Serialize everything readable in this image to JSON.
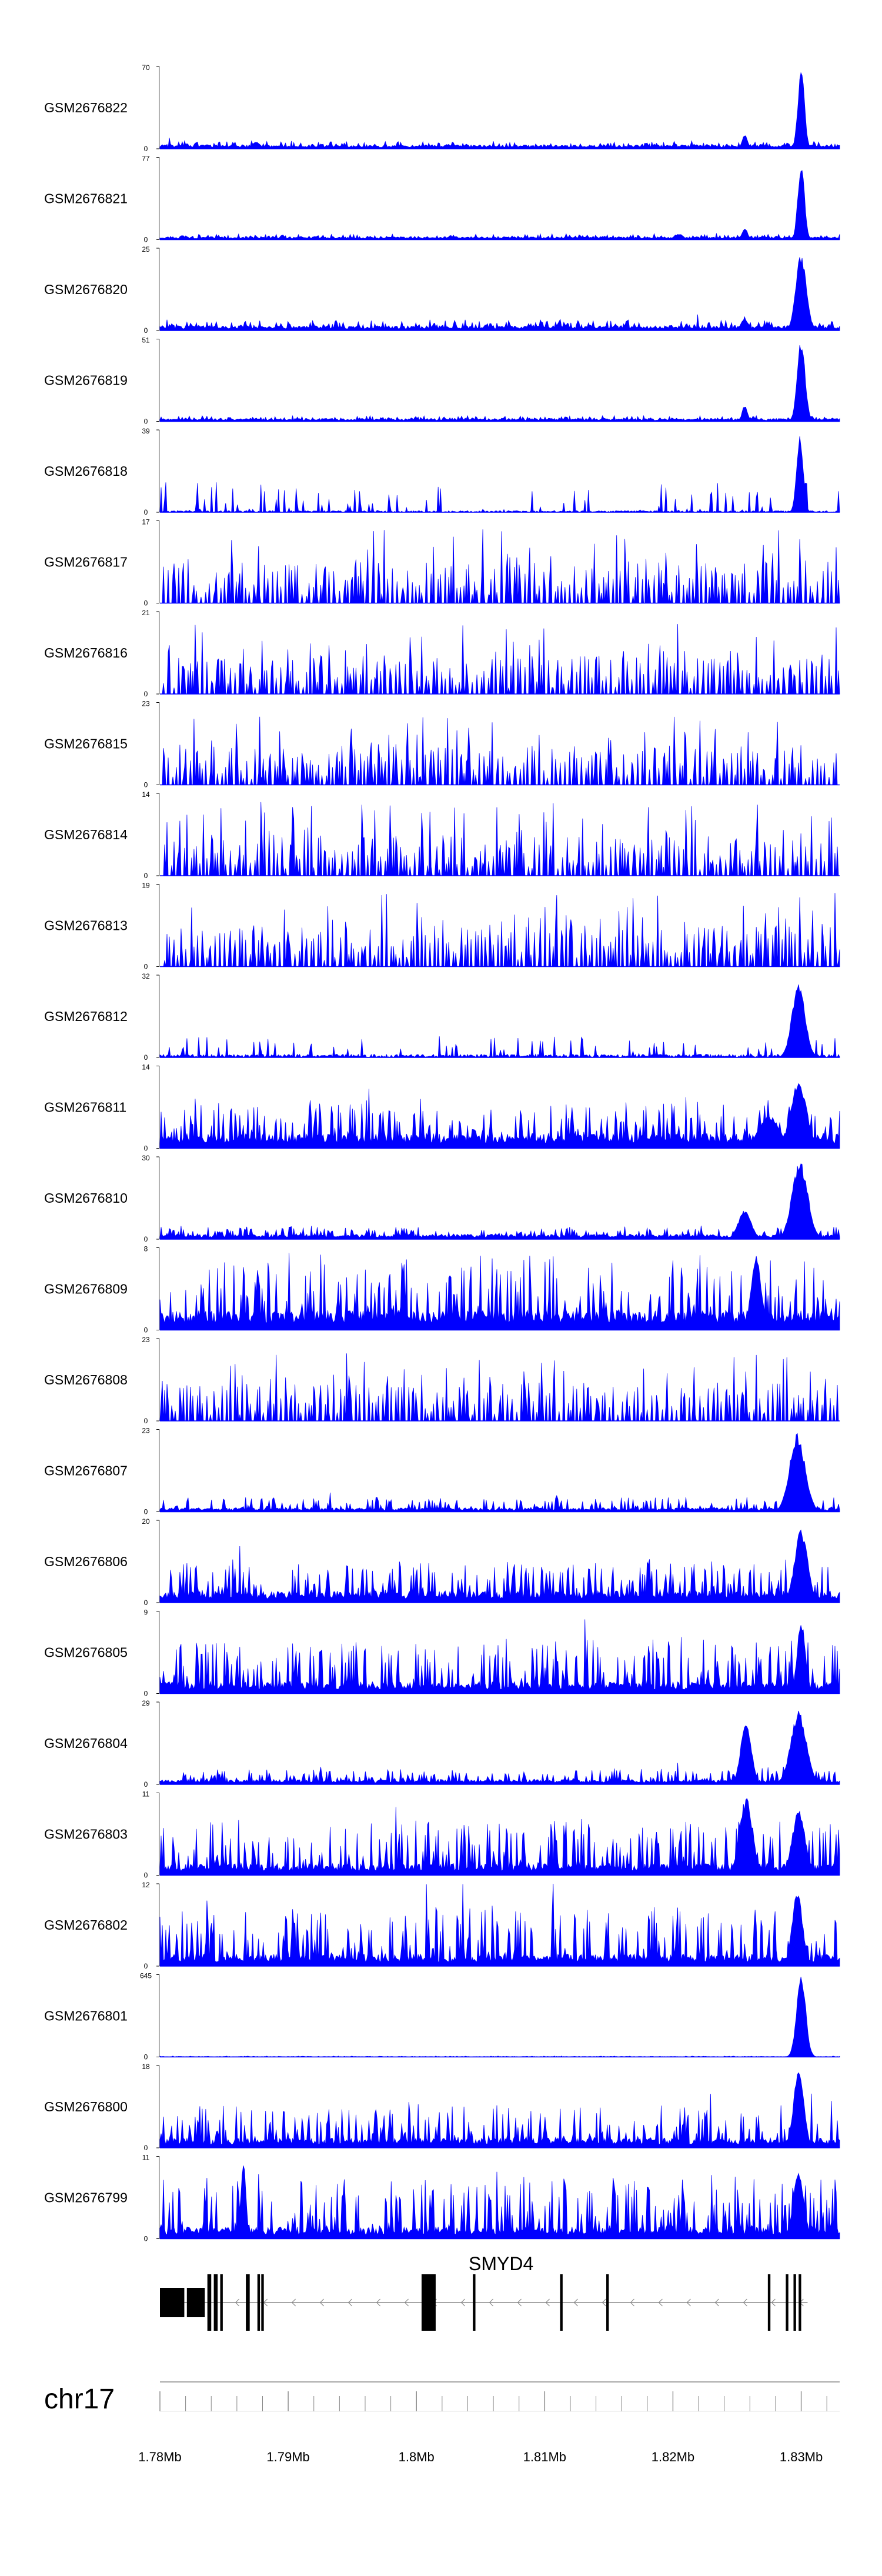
{
  "chart_data": {
    "type": "area",
    "chromosome": "chr17",
    "xlim": [
      1.78,
      1.833
    ],
    "x_unit": "Mb",
    "x_ticks": [
      1.78,
      1.79,
      1.8,
      1.81,
      1.82,
      1.83
    ],
    "x_tick_labels": [
      "1.78Mb",
      "1.79Mb",
      "1.8Mb",
      "1.81Mb",
      "1.82Mb",
      "1.83Mb"
    ],
    "color": "#0000ff",
    "tracks": [
      {
        "name": "GSM2676822",
        "max": 70,
        "min": 0,
        "baseline": 0.04,
        "noise": 0.05,
        "style": "dense",
        "peaks": [
          {
            "x": 1.83,
            "h": 1.0,
            "w": 0.00025
          },
          {
            "x": 1.8256,
            "h": 0.18,
            "w": 0.0002
          },
          {
            "x": 1.7875,
            "h": 0.09,
            "w": 0.0003
          }
        ]
      },
      {
        "name": "GSM2676821",
        "max": 77,
        "min": 0,
        "baseline": 0.03,
        "noise": 0.04,
        "style": "dense",
        "peaks": [
          {
            "x": 1.83,
            "h": 0.95,
            "w": 0.00025
          },
          {
            "x": 1.8256,
            "h": 0.15,
            "w": 0.0002
          },
          {
            "x": 1.8205,
            "h": 0.07,
            "w": 0.0003
          }
        ]
      },
      {
        "name": "GSM2676820",
        "max": 25,
        "min": 0,
        "baseline": 0.05,
        "noise": 0.08,
        "style": "dense",
        "peaks": [
          {
            "x": 1.83,
            "h": 0.95,
            "w": 0.0004
          },
          {
            "x": 1.8256,
            "h": 0.14,
            "w": 0.0003
          }
        ]
      },
      {
        "name": "GSM2676819",
        "max": 51,
        "min": 0,
        "baseline": 0.03,
        "noise": 0.04,
        "style": "dense",
        "peaks": [
          {
            "x": 1.83,
            "h": 1.0,
            "w": 0.0003
          },
          {
            "x": 1.8256,
            "h": 0.2,
            "w": 0.0002
          }
        ]
      },
      {
        "name": "GSM2676818",
        "max": 39,
        "min": 0,
        "baseline": 0.02,
        "noise": 0.28,
        "style": "spiky",
        "peaks": [
          {
            "x": 1.8299,
            "h": 0.95,
            "w": 0.00025
          }
        ]
      },
      {
        "name": "GSM2676817",
        "max": 17,
        "min": 0,
        "baseline": 0.0,
        "noise": 0.9,
        "style": "sparse",
        "peaks": []
      },
      {
        "name": "GSM2676816",
        "max": 21,
        "min": 0,
        "baseline": 0.0,
        "noise": 0.85,
        "style": "sparse",
        "peaks": []
      },
      {
        "name": "GSM2676815",
        "max": 23,
        "min": 0,
        "baseline": 0.0,
        "noise": 0.85,
        "style": "sparse",
        "peaks": []
      },
      {
        "name": "GSM2676814",
        "max": 14,
        "min": 0,
        "baseline": 0.0,
        "noise": 0.9,
        "style": "sparse",
        "peaks": []
      },
      {
        "name": "GSM2676813",
        "max": 19,
        "min": 0,
        "baseline": 0.0,
        "noise": 0.9,
        "style": "sparse",
        "peaks": []
      },
      {
        "name": "GSM2676812",
        "max": 32,
        "min": 0,
        "baseline": 0.04,
        "noise": 0.2,
        "style": "spiky",
        "peaks": [
          {
            "x": 1.8298,
            "h": 0.92,
            "w": 0.0005
          }
        ]
      },
      {
        "name": "GSM2676811",
        "max": 14,
        "min": 0,
        "baseline": 0.15,
        "noise": 0.45,
        "style": "dense",
        "peaks": [
          {
            "x": 1.8298,
            "h": 0.85,
            "w": 0.0006
          },
          {
            "x": 1.8275,
            "h": 0.4,
            "w": 0.0008
          }
        ]
      },
      {
        "name": "GSM2676810",
        "max": 30,
        "min": 0,
        "baseline": 0.05,
        "noise": 0.12,
        "style": "dense",
        "peaks": [
          {
            "x": 1.8299,
            "h": 0.95,
            "w": 0.0006
          },
          {
            "x": 1.8256,
            "h": 0.35,
            "w": 0.0005
          }
        ]
      },
      {
        "name": "GSM2676809",
        "max": 8,
        "min": 0,
        "baseline": 0.2,
        "noise": 0.7,
        "style": "dense",
        "peaks": [
          {
            "x": 1.8265,
            "h": 0.9,
            "w": 0.0004
          }
        ]
      },
      {
        "name": "GSM2676808",
        "max": 23,
        "min": 0,
        "baseline": 0.0,
        "noise": 0.85,
        "style": "sparse",
        "peaks": []
      },
      {
        "name": "GSM2676807",
        "max": 23,
        "min": 0,
        "baseline": 0.04,
        "noise": 0.14,
        "style": "dense",
        "peaks": [
          {
            "x": 1.8297,
            "h": 0.95,
            "w": 0.0006
          }
        ]
      },
      {
        "name": "GSM2676806",
        "max": 20,
        "min": 0,
        "baseline": 0.12,
        "noise": 0.4,
        "style": "dense",
        "peaks": [
          {
            "x": 1.83,
            "h": 0.9,
            "w": 0.0005
          }
        ]
      },
      {
        "name": "GSM2676805",
        "max": 9,
        "min": 0,
        "baseline": 0.12,
        "noise": 0.55,
        "style": "dense",
        "peaks": [
          {
            "x": 1.83,
            "h": 0.92,
            "w": 0.0003
          }
        ]
      },
      {
        "name": "GSM2676804",
        "max": 29,
        "min": 0,
        "baseline": 0.05,
        "noise": 0.14,
        "style": "dense",
        "peaks": [
          {
            "x": 1.8298,
            "h": 0.9,
            "w": 0.0006
          },
          {
            "x": 1.8257,
            "h": 0.8,
            "w": 0.0004
          }
        ]
      },
      {
        "name": "GSM2676803",
        "max": 11,
        "min": 0,
        "baseline": 0.12,
        "noise": 0.55,
        "style": "dense",
        "peaks": [
          {
            "x": 1.8257,
            "h": 0.95,
            "w": 0.0005
          },
          {
            "x": 1.8298,
            "h": 0.8,
            "w": 0.0005
          }
        ]
      },
      {
        "name": "GSM2676802",
        "max": 12,
        "min": 0,
        "baseline": 0.12,
        "noise": 0.6,
        "style": "dense",
        "peaks": [
          {
            "x": 1.8297,
            "h": 0.9,
            "w": 0.0004
          }
        ]
      },
      {
        "name": "GSM2676801",
        "max": 645,
        "min": 0,
        "baseline": 0.005,
        "noise": 0.006,
        "style": "dense",
        "peaks": [
          {
            "x": 1.83,
            "h": 1.0,
            "w": 0.00035
          }
        ]
      },
      {
        "name": "GSM2676800",
        "max": 18,
        "min": 0,
        "baseline": 0.1,
        "noise": 0.45,
        "style": "dense",
        "peaks": [
          {
            "x": 1.8298,
            "h": 0.95,
            "w": 0.0004
          }
        ]
      },
      {
        "name": "GSM2676799",
        "max": 11,
        "min": 0,
        "baseline": 0.12,
        "noise": 0.65,
        "style": "dense",
        "peaks": [
          {
            "x": 1.7865,
            "h": 0.95,
            "w": 0.0002
          },
          {
            "x": 1.8298,
            "h": 0.85,
            "w": 0.0004
          }
        ]
      }
    ],
    "gene": {
      "name": "SMYD4",
      "strand": "-",
      "start": 1.78,
      "end": 1.8305,
      "exons": [
        {
          "s": 1.78,
          "e": 1.7819
        },
        {
          "s": 1.7821,
          "e": 1.7835
        },
        {
          "s": 1.7837,
          "e": 1.784
        },
        {
          "s": 1.7842,
          "e": 1.7845
        },
        {
          "s": 1.7847,
          "e": 1.7849
        },
        {
          "s": 1.7867,
          "e": 1.787
        },
        {
          "s": 1.7876,
          "e": 1.7878
        },
        {
          "s": 1.7879,
          "e": 1.7881
        },
        {
          "s": 1.8004,
          "e": 1.8015
        },
        {
          "s": 1.8044,
          "e": 1.8046
        },
        {
          "s": 1.8112,
          "e": 1.8114
        },
        {
          "s": 1.8148,
          "e": 1.815
        },
        {
          "s": 1.8274,
          "e": 1.8276
        },
        {
          "s": 1.8288,
          "e": 1.829
        },
        {
          "s": 1.8294,
          "e": 1.8296
        },
        {
          "s": 1.8298,
          "e": 1.83
        }
      ]
    }
  }
}
